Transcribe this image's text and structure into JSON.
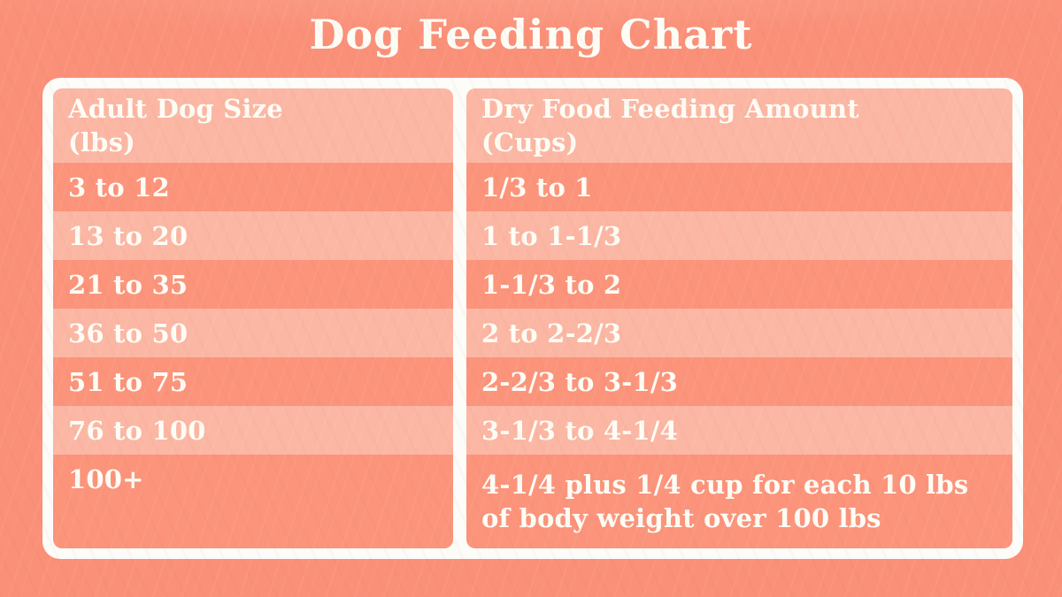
{
  "title": "Dog Feeding Chart",
  "table": {
    "header": {
      "size_line1": "Adult Dog Size",
      "size_line2": "(lbs)",
      "amount_line1": "Dry Food Feeding Amount",
      "amount_line2": "(Cups)"
    }
  },
  "chart_data": {
    "type": "table",
    "title": "Dog Feeding Chart",
    "columns": [
      "Adult Dog Size (lbs)",
      "Dry Food Feeding Amount (Cups)"
    ],
    "rows": [
      [
        "3 to 12",
        "1/3 to 1"
      ],
      [
        "13 to 20",
        "1 to 1-1/3"
      ],
      [
        "21 to 35",
        "1-1/3 to 2"
      ],
      [
        "36 to 50",
        "2 to 2-2/3"
      ],
      [
        "51 to 75",
        "2-2/3 to 3-1/3"
      ],
      [
        "76 to 100",
        "3-1/3 to 4-1/4"
      ],
      [
        "100+",
        "4-1/4 plus 1/4 cup for each 10 lbs of body weight over 100 lbs"
      ]
    ],
    "layout": {
      "stripe_pattern": "alternating dark/light rows starting dark under light header",
      "colors": {
        "background": "#FA9078",
        "row_dark": "#FB947B",
        "row_light": "#FBB7A4",
        "frame": "#FCFCF9",
        "text": "#FDFDF6"
      }
    }
  }
}
